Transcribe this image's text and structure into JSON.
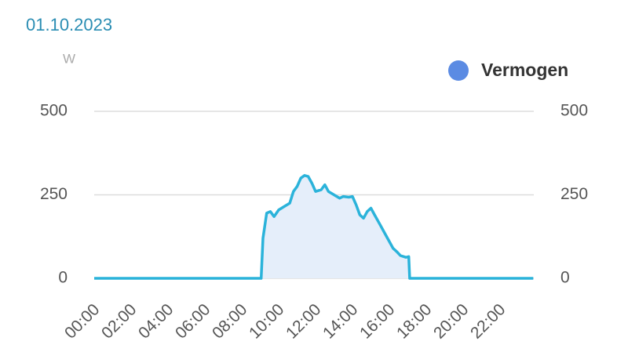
{
  "chart_data": {
    "type": "area",
    "title": "01.10.2023",
    "y_label": "W",
    "series": [
      {
        "name": "Vermogen",
        "color": "#2bb3da",
        "fill": "#e5eefa",
        "legend_color": "#5b8be3",
        "x": [
          0,
          9.05,
          9.15,
          9.35,
          9.55,
          9.75,
          10.0,
          10.3,
          10.6,
          10.8,
          11.0,
          11.2,
          11.4,
          11.6,
          11.8,
          12.0,
          12.3,
          12.5,
          12.7,
          13.0,
          13.3,
          13.5,
          13.8,
          14.0,
          14.2,
          14.4,
          14.6,
          14.8,
          15.0,
          15.2,
          15.5,
          15.8,
          16.0,
          16.2,
          16.4,
          16.6,
          16.9,
          17.05,
          17.1,
          23.8
        ],
        "values": [
          0,
          0,
          120,
          195,
          200,
          185,
          205,
          215,
          225,
          260,
          275,
          300,
          308,
          305,
          285,
          260,
          265,
          280,
          260,
          250,
          240,
          245,
          243,
          245,
          220,
          190,
          180,
          200,
          210,
          190,
          160,
          130,
          110,
          90,
          80,
          68,
          63,
          65,
          0,
          0
        ]
      }
    ],
    "xlim": [
      0,
      24
    ],
    "xticks": [
      {
        "value": 0,
        "label": "00:00"
      },
      {
        "value": 2,
        "label": "02:00"
      },
      {
        "value": 4,
        "label": "04:00"
      },
      {
        "value": 6,
        "label": "06:00"
      },
      {
        "value": 8,
        "label": "08:00"
      },
      {
        "value": 10,
        "label": "10:00"
      },
      {
        "value": 12,
        "label": "12:00"
      },
      {
        "value": 14,
        "label": "14:00"
      },
      {
        "value": 16,
        "label": "16:00"
      },
      {
        "value": 18,
        "label": "18:00"
      },
      {
        "value": 20,
        "label": "20:00"
      },
      {
        "value": 22,
        "label": "22:00"
      }
    ],
    "ylim": [
      0,
      500
    ],
    "yticks": [
      0,
      250,
      500
    ],
    "y2lim": [
      0,
      500
    ],
    "y2ticks": [
      0,
      250,
      500
    ],
    "grid": true
  }
}
